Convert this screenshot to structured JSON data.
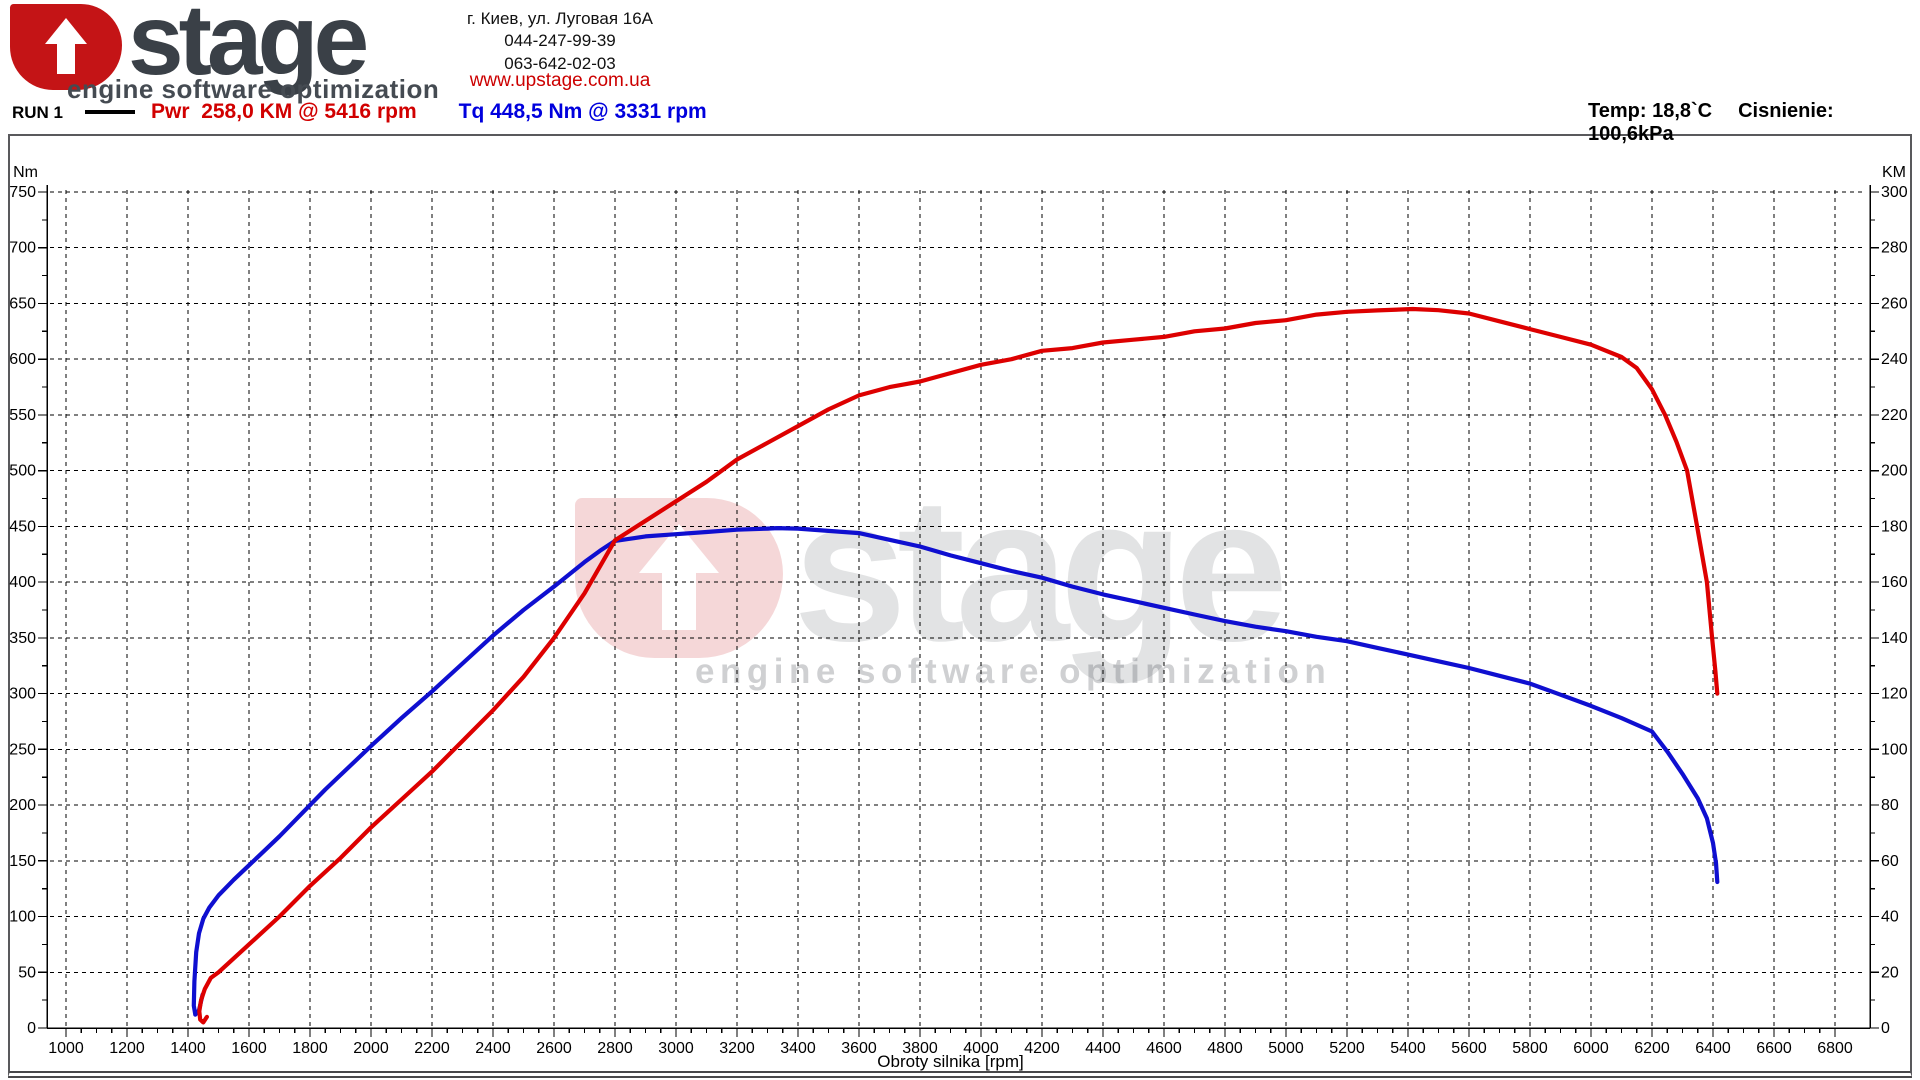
{
  "header": {
    "logo": {
      "text": "stage",
      "tagline": "engine software optimization"
    },
    "address": {
      "line1": "г. Киев, ул. Луговая 16А",
      "phone1": "044-247-99-39",
      "phone2": "063-642-02-03"
    },
    "website": "www.upstage.com.ua",
    "legend": {
      "run": "RUN 1",
      "power": "Pwr  258,0 KM @ 5416 rpm",
      "torque": "Tq 448,5 Nm @ 3331 rpm"
    },
    "env": {
      "temperature": "Temp: 18,8`C",
      "pressure": "Cisnienie: 100,6kPa"
    }
  },
  "watermark": {
    "text": "stage",
    "tagline": "engine software optimization"
  },
  "colors": {
    "power_red": "#dd0000",
    "torque_blue": "#0f0fd0",
    "legend_red": "#d10000",
    "legend_blue": "#0000dd",
    "logo_red": "#c41416",
    "logo_gray": "#3a4047",
    "grid": "#000000"
  },
  "chart_data": {
    "type": "line",
    "title": "RUN 1",
    "xlabel": "Obroty silnika [rpm]",
    "grid": "dashed",
    "x_axis": {
      "min": 1000,
      "max": 6800,
      "step": 200,
      "minor_step": 50
    },
    "left_axis": {
      "label": "Nm",
      "min": 0,
      "max": 750,
      "step": 50,
      "minor_step": 25
    },
    "right_axis": {
      "label": "KM",
      "min": 0,
      "max": 300,
      "step": 20,
      "minor_step": 10
    },
    "series": [
      {
        "name": "Tq",
        "axis": "left",
        "units": "Nm",
        "color": "#0f0fd0",
        "peak_label": "448,5 Nm @ 3331 rpm",
        "points": [
          [
            1448,
            30
          ],
          [
            1436,
            16
          ],
          [
            1424,
            12
          ],
          [
            1419,
            20
          ],
          [
            1421,
            42
          ],
          [
            1427,
            68
          ],
          [
            1436,
            85
          ],
          [
            1450,
            98
          ],
          [
            1470,
            108
          ],
          [
            1500,
            119
          ],
          [
            1550,
            133
          ],
          [
            1600,
            146
          ],
          [
            1650,
            159
          ],
          [
            1700,
            172
          ],
          [
            1750,
            186
          ],
          [
            1800,
            200
          ],
          [
            1850,
            214
          ],
          [
            1900,
            227
          ],
          [
            1950,
            240
          ],
          [
            2000,
            253
          ],
          [
            2100,
            278
          ],
          [
            2200,
            302
          ],
          [
            2300,
            327
          ],
          [
            2400,
            352
          ],
          [
            2500,
            375
          ],
          [
            2600,
            396
          ],
          [
            2700,
            418
          ],
          [
            2750,
            428
          ],
          [
            2800,
            437
          ],
          [
            2850,
            439
          ],
          [
            2900,
            441
          ],
          [
            3000,
            443
          ],
          [
            3100,
            445
          ],
          [
            3200,
            447
          ],
          [
            3300,
            448
          ],
          [
            3331,
            448.5
          ],
          [
            3400,
            448
          ],
          [
            3500,
            446
          ],
          [
            3600,
            444
          ],
          [
            3700,
            438
          ],
          [
            3800,
            432
          ],
          [
            3900,
            424
          ],
          [
            4000,
            417
          ],
          [
            4100,
            410
          ],
          [
            4200,
            404
          ],
          [
            4300,
            396
          ],
          [
            4400,
            389
          ],
          [
            4500,
            383
          ],
          [
            4600,
            377
          ],
          [
            4700,
            371
          ],
          [
            4800,
            365
          ],
          [
            4900,
            360
          ],
          [
            5000,
            356
          ],
          [
            5100,
            351
          ],
          [
            5200,
            347
          ],
          [
            5300,
            341
          ],
          [
            5400,
            335
          ],
          [
            5500,
            329
          ],
          [
            5600,
            323
          ],
          [
            5700,
            316
          ],
          [
            5800,
            309
          ],
          [
            5900,
            299
          ],
          [
            6000,
            289
          ],
          [
            6100,
            278
          ],
          [
            6200,
            266
          ],
          [
            6250,
            248
          ],
          [
            6300,
            228
          ],
          [
            6350,
            206
          ],
          [
            6380,
            188
          ],
          [
            6400,
            166
          ],
          [
            6410,
            148
          ],
          [
            6414,
            131
          ]
        ]
      },
      {
        "name": "Pwr",
        "axis": "right",
        "units": "KM",
        "color": "#dd0000",
        "peak_label": "258,0 KM @ 5416 rpm",
        "points": [
          [
            1462,
            4
          ],
          [
            1450,
            2
          ],
          [
            1440,
            3
          ],
          [
            1437,
            6
          ],
          [
            1443,
            10
          ],
          [
            1455,
            14
          ],
          [
            1475,
            18
          ],
          [
            1500,
            20
          ],
          [
            1550,
            25
          ],
          [
            1610,
            31
          ],
          [
            1700,
            40
          ],
          [
            1800,
            51
          ],
          [
            1900,
            61
          ],
          [
            2000,
            72
          ],
          [
            2100,
            82
          ],
          [
            2200,
            92
          ],
          [
            2300,
            103
          ],
          [
            2400,
            114
          ],
          [
            2500,
            126
          ],
          [
            2600,
            140
          ],
          [
            2700,
            156
          ],
          [
            2800,
            175
          ],
          [
            2900,
            182
          ],
          [
            3000,
            189
          ],
          [
            3100,
            196
          ],
          [
            3200,
            204
          ],
          [
            3300,
            210
          ],
          [
            3400,
            216
          ],
          [
            3500,
            222
          ],
          [
            3600,
            227
          ],
          [
            3700,
            230
          ],
          [
            3800,
            232
          ],
          [
            3900,
            235
          ],
          [
            4000,
            238
          ],
          [
            4100,
            240
          ],
          [
            4200,
            243
          ],
          [
            4300,
            244
          ],
          [
            4400,
            246
          ],
          [
            4500,
            247
          ],
          [
            4600,
            248
          ],
          [
            4700,
            250
          ],
          [
            4800,
            251
          ],
          [
            4900,
            253
          ],
          [
            5000,
            254
          ],
          [
            5100,
            256
          ],
          [
            5200,
            257
          ],
          [
            5300,
            257.5
          ],
          [
            5416,
            258
          ],
          [
            5500,
            257.6
          ],
          [
            5600,
            256.4
          ],
          [
            5700,
            253.6
          ],
          [
            5800,
            250.8
          ],
          [
            5900,
            248
          ],
          [
            6000,
            245.2
          ],
          [
            6100,
            240.8
          ],
          [
            6150,
            236.8
          ],
          [
            6200,
            229.2
          ],
          [
            6243,
            220
          ],
          [
            6280,
            210.4
          ],
          [
            6315,
            200
          ],
          [
            6348,
            180
          ],
          [
            6380,
            160
          ],
          [
            6397,
            140
          ],
          [
            6408,
            128
          ],
          [
            6414,
            120
          ]
        ]
      }
    ]
  }
}
